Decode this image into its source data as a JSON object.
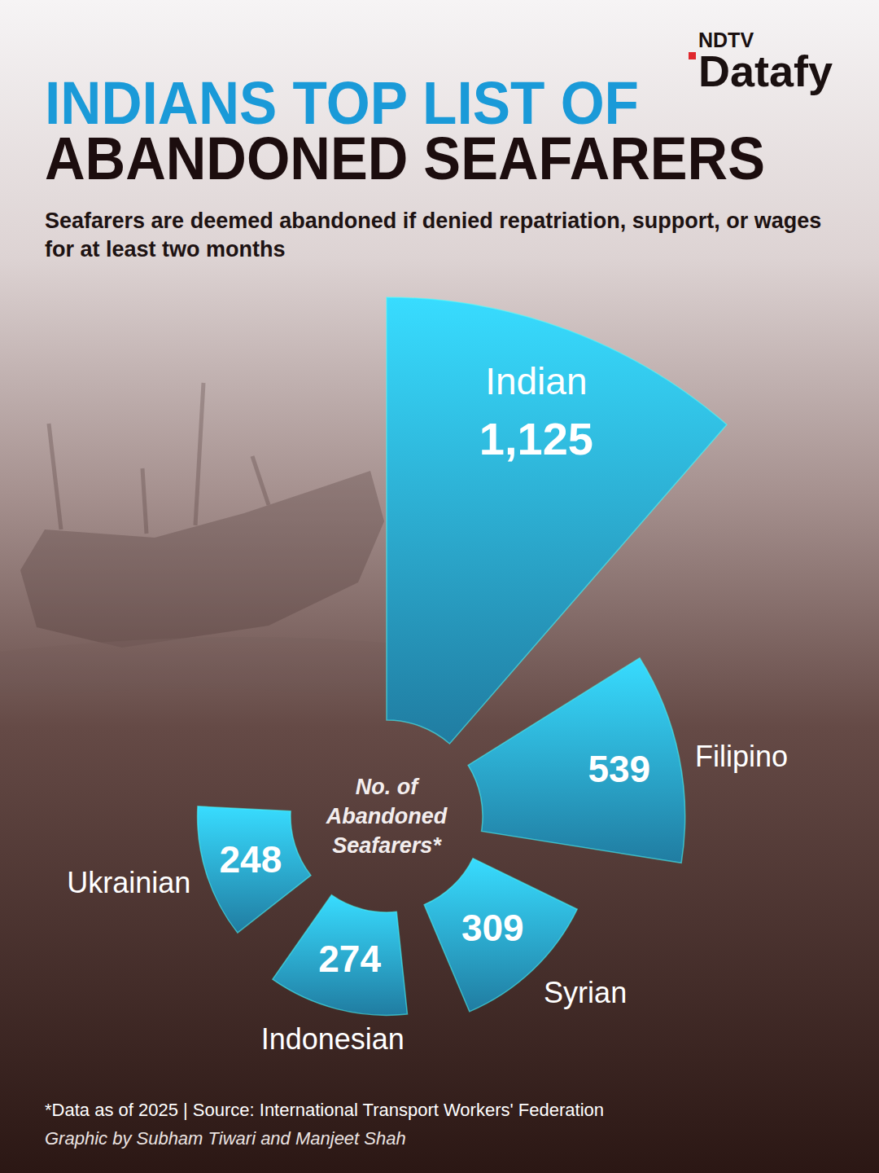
{
  "chart_data": {
    "type": "polar_area",
    "title": [
      "INDIANS TOP LIST OF",
      "ABANDONED SEAFARERS"
    ],
    "subtitle": "Seafarers are deemed abandoned if denied repatriation, support, or wages for at least two months",
    "brand": [
      "NDTV",
      "Datafy"
    ],
    "center_label": "No. of Abandoned Seafarers*",
    "categories": [
      "Indian",
      "Filipino",
      "Syrian",
      "Indonesian",
      "Ukrainian"
    ],
    "values": [
      1125,
      539,
      309,
      274,
      248
    ],
    "value_labels": [
      "1,125",
      "539",
      "309",
      "274",
      "248"
    ],
    "color": "#2fb8ee",
    "ylim": [
      0,
      1125
    ],
    "data_labels": true,
    "tick_labels": false,
    "footnote": "*Data as of 2025 | Source: International Transport Workers' Federation",
    "credit": "Graphic by Subham Tiwari and Manjeet Shah"
  }
}
